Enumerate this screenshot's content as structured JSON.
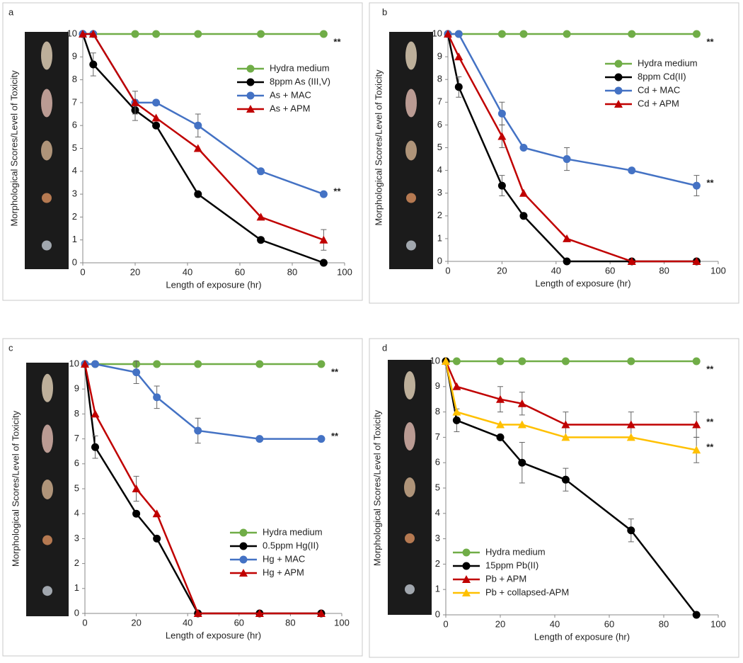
{
  "chart_data": [
    {
      "type": "line",
      "panel_label": "a",
      "x_label": "Length of exposure (hr)",
      "y_label": "Morphological Scores/Level of Toxicity",
      "x": [
        0,
        4,
        20,
        28,
        44,
        68,
        92
      ],
      "xlim": [
        0,
        100
      ],
      "xticks": [
        0,
        20,
        40,
        60,
        80,
        100
      ],
      "ylim": [
        0,
        10
      ],
      "yticks": [
        0,
        1,
        2,
        3,
        4,
        5,
        6,
        7,
        8,
        9,
        10
      ],
      "series": [
        {
          "name": "Hydra medium",
          "color": "#70ad47",
          "marker": "circle",
          "values": [
            10,
            10,
            10,
            10,
            10,
            10,
            10
          ],
          "errors": [
            null,
            null,
            null,
            null,
            null,
            null,
            null
          ]
        },
        {
          "name": "8ppm As (III,V)",
          "color": "#000000",
          "marker": "circle",
          "values": [
            10,
            8.67,
            6.67,
            6,
            3,
            1,
            0
          ],
          "errors": [
            null,
            0.5,
            0.45,
            null,
            null,
            null,
            null
          ]
        },
        {
          "name": "As + MAC",
          "color": "#4472c4",
          "marker": "circle",
          "values": [
            10,
            10,
            7,
            7,
            6,
            4,
            3
          ],
          "errors": [
            null,
            null,
            null,
            null,
            0.5,
            null,
            null
          ]
        },
        {
          "name": "As + APM",
          "color": "#c00000",
          "marker": "triangle",
          "values": [
            10,
            10,
            7,
            6.33,
            5,
            2,
            1
          ],
          "errors": [
            null,
            null,
            0.5,
            null,
            null,
            null,
            0.45
          ]
        }
      ],
      "annotations": [
        "**",
        "**"
      ]
    },
    {
      "type": "line",
      "panel_label": "b",
      "x_label": "Length of exposure (hr)",
      "y_label": "Morphological Scores/Level of Toxicity",
      "x": [
        0,
        4,
        20,
        28,
        44,
        68,
        92
      ],
      "xlim": [
        0,
        100
      ],
      "xticks": [
        0,
        20,
        40,
        60,
        80,
        100
      ],
      "ylim": [
        0,
        10
      ],
      "yticks": [
        0,
        1,
        2,
        3,
        4,
        5,
        6,
        7,
        8,
        9,
        10
      ],
      "series": [
        {
          "name": "Hydra medium",
          "color": "#70ad47",
          "marker": "circle",
          "values": [
            10,
            10,
            10,
            10,
            10,
            10,
            10
          ],
          "errors": [
            null,
            null,
            null,
            null,
            null,
            null,
            null
          ]
        },
        {
          "name": "8ppm Cd(II)",
          "color": "#000000",
          "marker": "circle",
          "values": [
            10,
            7.67,
            3.33,
            2,
            0,
            0,
            0
          ],
          "errors": [
            null,
            0.45,
            0.45,
            null,
            null,
            null,
            null
          ]
        },
        {
          "name": "Cd + MAC",
          "color": "#4472c4",
          "marker": "circle",
          "values": [
            10,
            10,
            6.5,
            5,
            4.5,
            4,
            3.33
          ],
          "errors": [
            null,
            null,
            0.5,
            null,
            0.5,
            null,
            0.45
          ]
        },
        {
          "name": "Cd + APM",
          "color": "#c00000",
          "marker": "triangle",
          "values": [
            10,
            9,
            5.5,
            3,
            1,
            0,
            0
          ],
          "errors": [
            null,
            null,
            0.5,
            null,
            null,
            null,
            null
          ]
        }
      ],
      "annotations": [
        "**",
        "**"
      ]
    },
    {
      "type": "line",
      "panel_label": "c",
      "x_label": "Length of exposure (hr)",
      "y_label": "Morphological Scores/Level of Toxicity",
      "x": [
        0,
        4,
        20,
        28,
        44,
        68,
        92
      ],
      "xlim": [
        0,
        100
      ],
      "xticks": [
        0,
        20,
        40,
        60,
        80,
        100
      ],
      "ylim": [
        0,
        10
      ],
      "yticks": [
        0,
        1,
        2,
        3,
        4,
        5,
        6,
        7,
        8,
        9,
        10
      ],
      "series": [
        {
          "name": "Hydra medium",
          "color": "#70ad47",
          "marker": "circle",
          "values": [
            10,
            10,
            10,
            10,
            10,
            10,
            10
          ],
          "errors": [
            null,
            null,
            null,
            null,
            null,
            null,
            null
          ]
        },
        {
          "name": "0.5ppm Hg(II)",
          "color": "#000000",
          "marker": "circle",
          "values": [
            10,
            6.67,
            4,
            3,
            0,
            0,
            0
          ],
          "errors": [
            null,
            0.45,
            null,
            null,
            null,
            null,
            null
          ]
        },
        {
          "name": "Hg + MAC",
          "color": "#4472c4",
          "marker": "circle",
          "values": [
            10,
            10,
            9.67,
            8.67,
            7.33,
            7,
            7
          ],
          "errors": [
            null,
            null,
            0.45,
            0.45,
            0.5,
            null,
            null
          ]
        },
        {
          "name": "Hg + APM",
          "color": "#c00000",
          "marker": "triangle",
          "values": [
            10,
            8,
            5,
            4,
            0,
            0,
            0
          ],
          "errors": [
            null,
            null,
            0.5,
            null,
            null,
            null,
            null
          ]
        }
      ],
      "annotations": [
        "**",
        "**"
      ]
    },
    {
      "type": "line",
      "panel_label": "d",
      "x_label": "Length of exposure (hr)",
      "y_label": "Morphological Scores/Level of Toxicity",
      "x": [
        0,
        4,
        20,
        28,
        44,
        68,
        92
      ],
      "xlim": [
        0,
        100
      ],
      "xticks": [
        0,
        20,
        40,
        60,
        80,
        100
      ],
      "ylim": [
        0,
        10
      ],
      "yticks": [
        0,
        1,
        2,
        3,
        4,
        5,
        6,
        7,
        8,
        9,
        10
      ],
      "series": [
        {
          "name": "Hydra medium",
          "color": "#70ad47",
          "marker": "circle",
          "values": [
            10,
            10,
            10,
            10,
            10,
            10,
            10
          ],
          "errors": [
            null,
            null,
            null,
            null,
            null,
            null,
            null
          ]
        },
        {
          "name": "15ppm Pb(II)",
          "color": "#000000",
          "marker": "circle",
          "values": [
            10,
            7.67,
            7,
            6,
            5.33,
            3.33,
            0
          ],
          "errors": [
            null,
            0.45,
            null,
            0.8,
            0.45,
            0.45,
            null
          ]
        },
        {
          "name": "Pb + APM",
          "color": "#c00000",
          "marker": "triangle",
          "values": [
            10,
            9,
            8.5,
            8.33,
            7.5,
            7.5,
            7.5
          ],
          "errors": [
            null,
            null,
            0.5,
            0.45,
            0.5,
            0.5,
            0.5
          ]
        },
        {
          "name": "Pb + collapsed-APM",
          "color": "#ffc000",
          "marker": "triangle",
          "values": [
            10,
            8,
            7.5,
            7.5,
            7,
            7,
            6.5
          ],
          "errors": [
            null,
            null,
            null,
            null,
            null,
            null,
            0.5
          ]
        }
      ],
      "annotations": [
        "**",
        "**",
        "**"
      ]
    }
  ]
}
